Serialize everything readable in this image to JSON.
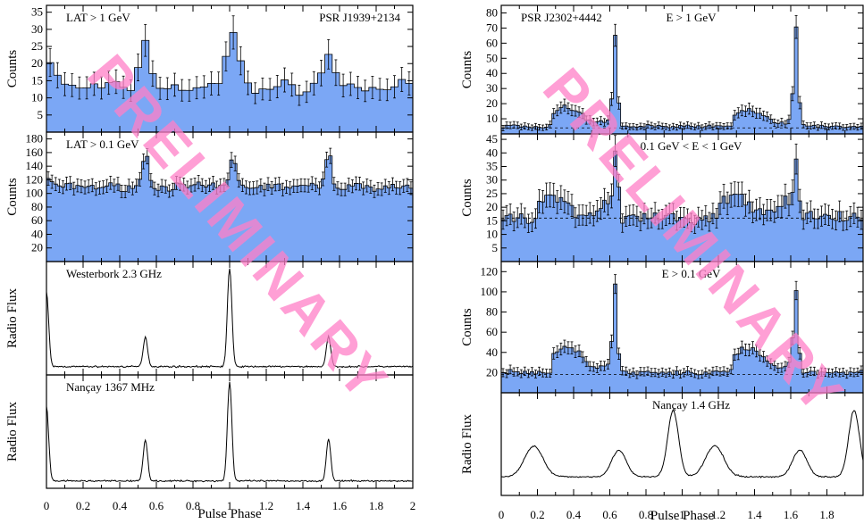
{
  "watermark": "PRELIMINARY",
  "colors": {
    "fill": "#7ba7f5",
    "line": "#000000",
    "watermark": "#ff80c8"
  },
  "figures": [
    {
      "xlabel": "Pulse Phase",
      "xticks": [
        "0",
        "0.2",
        "0.4",
        "0.6",
        "0.8",
        "1",
        "1.2",
        "1.4",
        "1.6",
        "1.8",
        "2"
      ]
    },
    {
      "xlabel": "Pulse Phase",
      "xticks": [
        "0",
        "0.2",
        "0.4",
        "0.6",
        "0.8",
        "1",
        "1.2",
        "1.4",
        "1.6",
        "1.8"
      ]
    }
  ],
  "chart_data": [
    {
      "type": "bar",
      "figure": 0,
      "panel": 0,
      "label": "LAT > 1 GeV",
      "label_right": "PSR J1939+2134",
      "ylabel": "Counts",
      "ylim": [
        0,
        37
      ],
      "yticks": [
        5,
        10,
        15,
        20,
        25,
        30,
        35
      ],
      "xlim": [
        0,
        2
      ],
      "bins": 50,
      "baseline": 13,
      "peaks": [
        {
          "x": 0.02,
          "h": 8
        },
        {
          "x": 0.54,
          "h": 12
        },
        {
          "x": 1.02,
          "h": 17
        },
        {
          "x": 1.54,
          "h": 10
        }
      ]
    },
    {
      "type": "bar",
      "figure": 0,
      "panel": 1,
      "label": "LAT > 0.1 GeV",
      "ylabel": "Counts",
      "ylim": [
        0,
        190
      ],
      "yticks": [
        20,
        40,
        60,
        80,
        100,
        120,
        140,
        160,
        180
      ],
      "xlim": [
        0,
        2
      ],
      "bins": 100,
      "baseline": 110,
      "peaks": [
        {
          "x": 0.02,
          "h": 12
        },
        {
          "x": 0.54,
          "h": 50
        },
        {
          "x": 1.02,
          "h": 45
        },
        {
          "x": 1.54,
          "h": 50
        }
      ]
    },
    {
      "type": "line",
      "figure": 0,
      "panel": 2,
      "label": "Westerbork 2.3 GHz",
      "ylabel": "Radio Flux",
      "xlim": [
        0,
        2
      ],
      "baseline": 0.03,
      "peaks": [
        {
          "x": 0.0,
          "h": 0.75,
          "w": 0.012
        },
        {
          "x": 0.54,
          "h": 0.3,
          "w": 0.012
        },
        {
          "x": 1.0,
          "h": 1.0,
          "w": 0.012
        },
        {
          "x": 1.54,
          "h": 0.3,
          "w": 0.012
        }
      ]
    },
    {
      "type": "line",
      "figure": 0,
      "panel": 3,
      "label": "Nançay 1367 MHz",
      "ylabel": "Radio Flux",
      "xlim": [
        0,
        2
      ],
      "baseline": 0.02,
      "peaks": [
        {
          "x": 0.0,
          "h": 0.75,
          "w": 0.012
        },
        {
          "x": 0.54,
          "h": 0.42,
          "w": 0.012
        },
        {
          "x": 1.0,
          "h": 1.0,
          "w": 0.012
        },
        {
          "x": 1.54,
          "h": 0.42,
          "w": 0.012
        }
      ]
    },
    {
      "type": "bar",
      "figure": 1,
      "panel": 0,
      "label": "E > 1 GeV",
      "label_left": "PSR J2302+4442",
      "ylabel": "Counts",
      "ylim": [
        0,
        85
      ],
      "yticks": [
        10,
        20,
        30,
        40,
        50,
        60,
        70,
        80
      ],
      "xlim": [
        0,
        2
      ],
      "bins": 100,
      "baseline": 5,
      "bg_level": 4,
      "peaks": [
        {
          "x": 0.63,
          "h": 63,
          "w": 0.012
        },
        {
          "x": 1.63,
          "h": 63,
          "w": 0.012
        }
      ],
      "bumps": [
        {
          "from": 0.28,
          "to": 0.62,
          "h": 12
        },
        {
          "from": 1.28,
          "to": 1.62,
          "h": 12
        }
      ]
    },
    {
      "type": "bar",
      "figure": 1,
      "panel": 1,
      "label": "0.1 GeV < E < 1 GeV",
      "ylabel": "Counts",
      "ylim": [
        0,
        47
      ],
      "yticks": [
        5,
        10,
        15,
        20,
        25,
        30,
        35,
        40,
        45
      ],
      "xlim": [
        0,
        2
      ],
      "bins": 100,
      "baseline": 16,
      "bg_level": 16,
      "peaks": [
        {
          "x": 0.63,
          "h": 22,
          "w": 0.015
        },
        {
          "x": 1.63,
          "h": 22,
          "w": 0.015
        }
      ],
      "bumps": [
        {
          "from": 0.2,
          "to": 0.6,
          "h": 8
        },
        {
          "from": 1.2,
          "to": 1.6,
          "h": 8
        }
      ]
    },
    {
      "type": "bar",
      "figure": 1,
      "panel": 2,
      "label": "E > 0.1 GeV",
      "ylabel": "Counts",
      "ylim": [
        0,
        130
      ],
      "yticks": [
        20,
        40,
        60,
        80,
        100,
        120
      ],
      "xlim": [
        0,
        2
      ],
      "bins": 100,
      "baseline": 20,
      "bg_level": 18,
      "peaks": [
        {
          "x": 0.63,
          "h": 85,
          "w": 0.012
        },
        {
          "x": 1.63,
          "h": 85,
          "w": 0.012
        }
      ],
      "bumps": [
        {
          "from": 0.28,
          "to": 0.62,
          "h": 25
        },
        {
          "from": 1.28,
          "to": 1.62,
          "h": 25
        }
      ]
    },
    {
      "type": "line",
      "figure": 1,
      "panel": 3,
      "label": "Nançay 1.4 GHz",
      "ylabel": "Radio Flux",
      "xlim": [
        0,
        2
      ],
      "baseline": 0.15,
      "peaks": [
        {
          "x": 0.18,
          "h": 0.35,
          "w": 0.05
        },
        {
          "x": 0.65,
          "h": 0.3,
          "w": 0.04
        },
        {
          "x": 0.95,
          "h": 0.75,
          "w": 0.03
        },
        {
          "x": 1.18,
          "h": 0.35,
          "w": 0.05
        },
        {
          "x": 1.65,
          "h": 0.3,
          "w": 0.04
        },
        {
          "x": 1.95,
          "h": 0.75,
          "w": 0.03
        }
      ]
    }
  ]
}
